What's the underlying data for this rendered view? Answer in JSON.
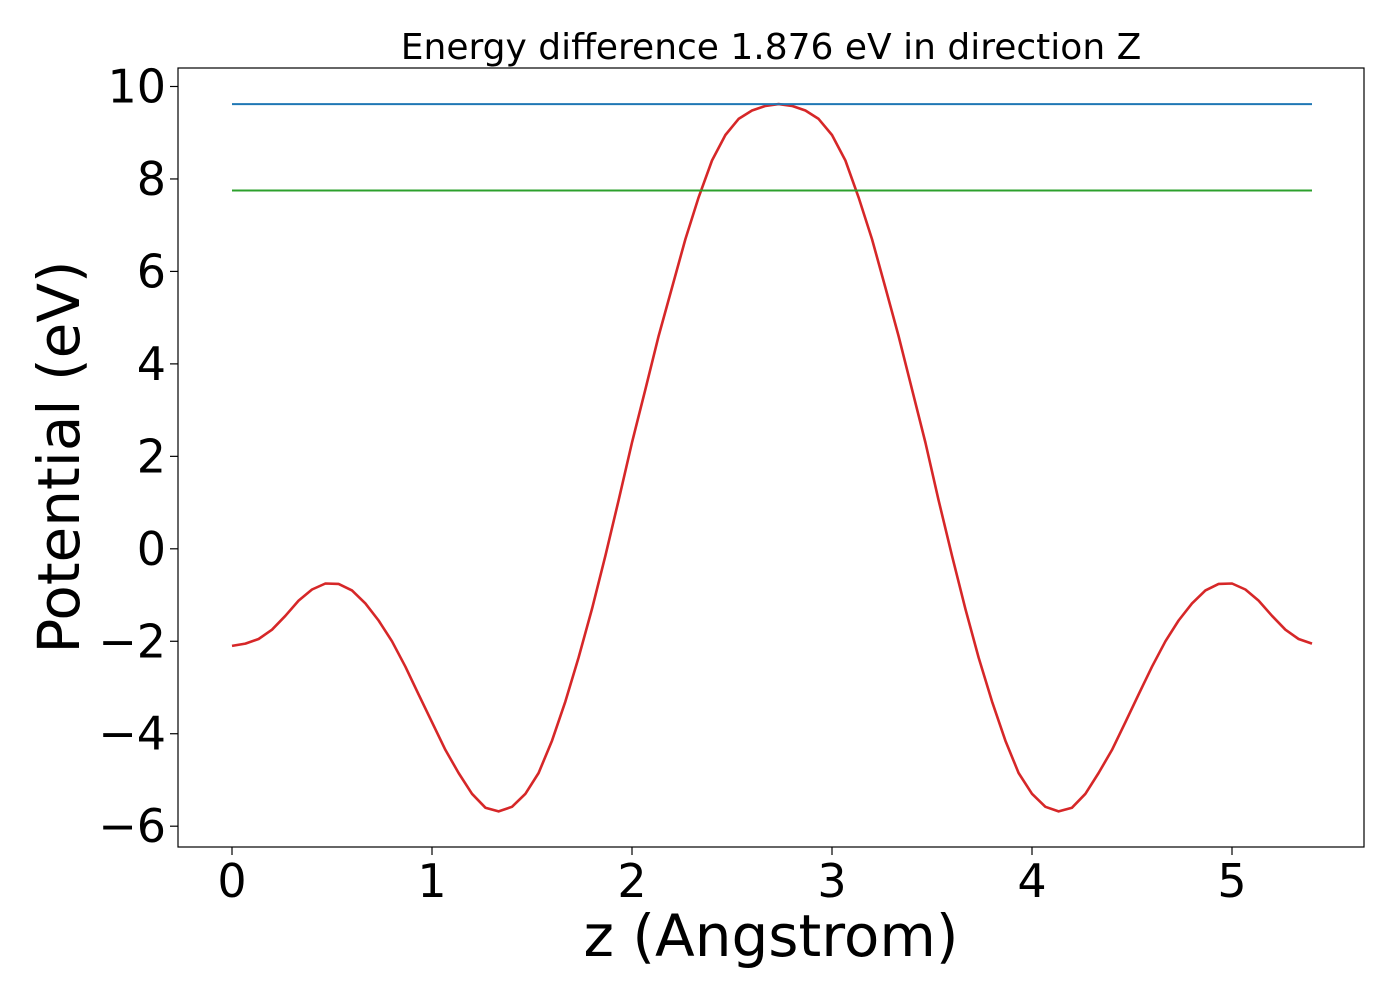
{
  "chart_data": {
    "type": "line",
    "title": "Energy difference 1.876 eV in direction Z",
    "xlabel": "z (Angstrom)",
    "ylabel": "Potential (eV)",
    "xlim": [
      -0.27,
      5.66
    ],
    "ylim": [
      -6.45,
      10.4
    ],
    "xticks": [
      0,
      1,
      2,
      3,
      4,
      5
    ],
    "xtick_labels": [
      "0",
      "1",
      "2",
      "3",
      "4",
      "5"
    ],
    "yticks": [
      -6,
      -4,
      -2,
      0,
      2,
      4,
      6,
      8,
      10
    ],
    "ytick_labels": [
      "−6",
      "−4",
      "−2",
      "0",
      "2",
      "4",
      "6",
      "8",
      "10"
    ],
    "grid": false,
    "legend": "none",
    "series": [
      {
        "color": "#d62728",
        "x": [
          0,
          0.067,
          0.133,
          0.2,
          0.267,
          0.333,
          0.4,
          0.467,
          0.533,
          0.6,
          0.667,
          0.733,
          0.8,
          0.867,
          0.933,
          1.0,
          1.067,
          1.133,
          1.2,
          1.267,
          1.333,
          1.4,
          1.467,
          1.533,
          1.6,
          1.667,
          1.733,
          1.8,
          1.867,
          1.933,
          2.0,
          2.067,
          2.133,
          2.2,
          2.267,
          2.333,
          2.4,
          2.467,
          2.533,
          2.6,
          2.667,
          2.733,
          2.8,
          2.867,
          2.933,
          3.0,
          3.067,
          3.133,
          3.2,
          3.267,
          3.333,
          3.4,
          3.467,
          3.533,
          3.6,
          3.667,
          3.733,
          3.8,
          3.867,
          3.933,
          4.0,
          4.067,
          4.133,
          4.2,
          4.267,
          4.333,
          4.4,
          4.467,
          4.533,
          4.6,
          4.667,
          4.733,
          4.8,
          4.867,
          4.933,
          5.0,
          5.067,
          5.133,
          5.2,
          5.267,
          5.333,
          5.4
        ],
        "y": [
          -2.1,
          -2.05,
          -1.95,
          -1.75,
          -1.45,
          -1.12,
          -0.88,
          -0.75,
          -0.76,
          -0.9,
          -1.18,
          -1.55,
          -2.0,
          -2.55,
          -3.15,
          -3.75,
          -4.35,
          -4.85,
          -5.3,
          -5.6,
          -5.68,
          -5.58,
          -5.3,
          -4.85,
          -4.15,
          -3.3,
          -2.35,
          -1.3,
          -0.15,
          1.05,
          2.3,
          3.45,
          4.6,
          5.65,
          6.7,
          7.6,
          8.4,
          8.95,
          9.3,
          9.48,
          9.58,
          9.62,
          9.58,
          9.48,
          9.3,
          8.95,
          8.4,
          7.6,
          6.7,
          5.65,
          4.6,
          3.45,
          2.3,
          1.05,
          -0.15,
          -1.3,
          -2.35,
          -3.3,
          -4.15,
          -4.85,
          -5.3,
          -5.58,
          -5.68,
          -5.6,
          -5.3,
          -4.85,
          -4.35,
          -3.75,
          -3.15,
          -2.55,
          -2.0,
          -1.55,
          -1.18,
          -0.9,
          -0.76,
          -0.75,
          -0.88,
          -1.12,
          -1.45,
          -1.75,
          -1.95,
          -2.05
        ]
      },
      {
        "color": "#1f77b4",
        "x": [
          0,
          5.4
        ],
        "y": [
          9.62,
          9.62
        ]
      },
      {
        "color": "#2ca02c",
        "x": [
          0,
          5.4
        ],
        "y": [
          7.75,
          7.75
        ]
      }
    ]
  }
}
